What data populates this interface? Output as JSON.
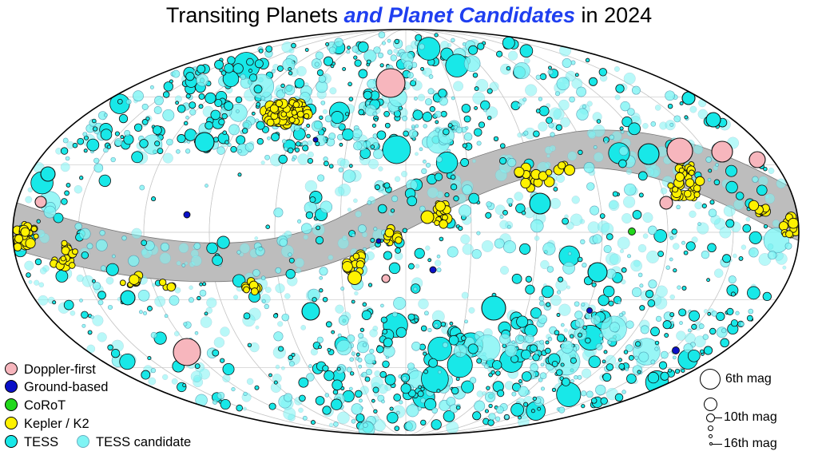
{
  "title": {
    "part1": "Transiting Planets ",
    "part2": "and Planet Candidates",
    "part3": " in 2024",
    "accent_color": "#1f3ff0"
  },
  "chart_data": {
    "type": "scatter",
    "projection": "mollweide all-sky",
    "grid": true,
    "legend_placement": "bottom-left",
    "series": [
      {
        "name": "Doppler-first",
        "color": "#f7b6bd"
      },
      {
        "name": "Ground-based",
        "color": "#0a10c8"
      },
      {
        "name": "CoRoT",
        "color": "#22d81c"
      },
      {
        "name": "Kepler / K2",
        "color": "#fff200"
      },
      {
        "name": "TESS",
        "color": "#18e8e8"
      },
      {
        "name": "TESS candidate",
        "color": "#7ff4f4"
      }
    ],
    "size_legend": {
      "placement": "bottom-right",
      "entries": [
        {
          "mag": 6,
          "label": "6th mag"
        },
        {
          "mag": 8,
          "label": ""
        },
        {
          "mag": 10,
          "label": "10th mag"
        },
        {
          "mag": 12,
          "label": ""
        },
        {
          "mag": 14,
          "label": ""
        },
        {
          "mag": 16,
          "label": "16th mag"
        }
      ]
    }
  }
}
